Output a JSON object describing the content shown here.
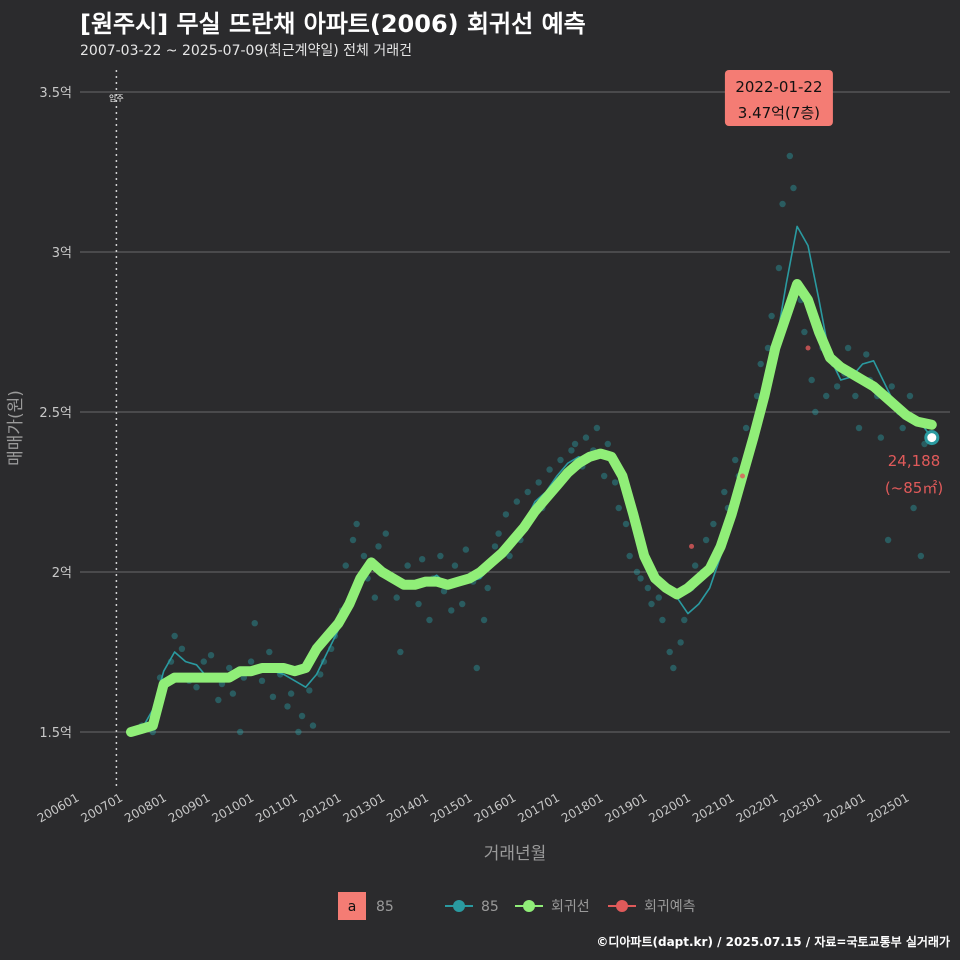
{
  "title": "[원주시] 무실 뜨란채 아파트(2006) 회귀선 예측",
  "subtitle": "2007-03-22 ~ 2025-07-09(최근계약일) 전체 거래건",
  "footer": "©디아파트(dapt.kr) / 2025.07.15 / 자료=국토교통부 실거래가",
  "colors": {
    "background": "#2b2b2d",
    "price_line": "#2a9aa0",
    "regression": "#90ee78",
    "prediction": "#e05a5a",
    "annotation_bg": "#f47c74"
  },
  "chart_data": {
    "type": "line",
    "xlabel": "거래년월",
    "ylabel": "매매가(원)",
    "x_range": [
      "2006-01",
      "2025-12"
    ],
    "ylim": [
      1.35,
      3.6
    ],
    "y_ticks": [
      {
        "value": 1.5,
        "label": "1.5억"
      },
      {
        "value": 2.0,
        "label": "2억"
      },
      {
        "value": 2.5,
        "label": "2.5억"
      },
      {
        "value": 3.0,
        "label": "3억"
      },
      {
        "value": 3.5,
        "label": "3.5억"
      }
    ],
    "x_ticks": [
      "200601",
      "200701",
      "200801",
      "200901",
      "201001",
      "201101",
      "201201",
      "201301",
      "201401",
      "201501",
      "201601",
      "201701",
      "201801",
      "201901",
      "202001",
      "202101",
      "202201",
      "202301",
      "202401",
      "202501"
    ],
    "grid": "horizontal",
    "move_in": {
      "x": "2006-11",
      "label": "입주"
    },
    "series": [
      {
        "name": "85",
        "style": "thin-line",
        "points": [
          [
            "2007-03",
            1.5
          ],
          [
            "2007-06",
            1.51
          ],
          [
            "2007-09",
            1.57
          ],
          [
            "2007-12",
            1.69
          ],
          [
            "2008-03",
            1.75
          ],
          [
            "2008-06",
            1.72
          ],
          [
            "2008-09",
            1.71
          ],
          [
            "2008-12",
            1.67
          ],
          [
            "2009-03",
            1.66
          ],
          [
            "2009-06",
            1.67
          ],
          [
            "2009-09",
            1.69
          ],
          [
            "2009-12",
            1.68
          ],
          [
            "2010-03",
            1.7
          ],
          [
            "2010-06",
            1.69
          ],
          [
            "2010-09",
            1.68
          ],
          [
            "2010-12",
            1.66
          ],
          [
            "2011-03",
            1.64
          ],
          [
            "2011-06",
            1.68
          ],
          [
            "2011-09",
            1.75
          ],
          [
            "2011-12",
            1.82
          ],
          [
            "2012-03",
            1.9
          ],
          [
            "2012-06",
            2.0
          ],
          [
            "2012-09",
            2.04
          ],
          [
            "2012-12",
            2.01
          ],
          [
            "2013-03",
            1.98
          ],
          [
            "2013-06",
            1.96
          ],
          [
            "2013-09",
            1.95
          ],
          [
            "2013-12",
            1.97
          ],
          [
            "2014-03",
            1.99
          ],
          [
            "2014-06",
            1.96
          ],
          [
            "2014-09",
            1.97
          ],
          [
            "2014-12",
            1.97
          ],
          [
            "2015-03",
            1.98
          ],
          [
            "2015-06",
            2.02
          ],
          [
            "2015-09",
            2.05
          ],
          [
            "2015-12",
            2.1
          ],
          [
            "2016-03",
            2.15
          ],
          [
            "2016-06",
            2.22
          ],
          [
            "2016-09",
            2.25
          ],
          [
            "2016-12",
            2.3
          ],
          [
            "2017-03",
            2.34
          ],
          [
            "2017-06",
            2.36
          ],
          [
            "2017-09",
            2.35
          ],
          [
            "2017-12",
            2.38
          ],
          [
            "2018-03",
            2.36
          ],
          [
            "2018-06",
            2.31
          ],
          [
            "2018-09",
            2.22
          ],
          [
            "2018-12",
            2.08
          ],
          [
            "2019-03",
            2.0
          ],
          [
            "2019-06",
            1.95
          ],
          [
            "2019-09",
            1.92
          ],
          [
            "2019-12",
            1.87
          ],
          [
            "2020-03",
            1.9
          ],
          [
            "2020-06",
            1.95
          ],
          [
            "2020-09",
            2.05
          ],
          [
            "2020-12",
            2.15
          ],
          [
            "2021-03",
            2.28
          ],
          [
            "2021-06",
            2.4
          ],
          [
            "2021-09",
            2.52
          ],
          [
            "2021-12",
            2.7
          ],
          [
            "2022-03",
            2.9
          ],
          [
            "2022-06",
            3.08
          ],
          [
            "2022-09",
            3.02
          ],
          [
            "2022-12",
            2.85
          ],
          [
            "2023-03",
            2.67
          ],
          [
            "2023-06",
            2.6
          ],
          [
            "2023-09",
            2.61
          ],
          [
            "2023-12",
            2.65
          ],
          [
            "2024-03",
            2.66
          ],
          [
            "2024-06",
            2.59
          ],
          [
            "2024-09",
            2.52
          ],
          [
            "2024-12",
            2.5
          ],
          [
            "2025-03",
            2.48
          ],
          [
            "2025-07",
            2.42
          ]
        ]
      },
      {
        "name": "회귀선",
        "style": "thick-line",
        "points": [
          [
            "2007-03",
            1.5
          ],
          [
            "2007-06",
            1.51
          ],
          [
            "2007-09",
            1.52
          ],
          [
            "2007-12",
            1.65
          ],
          [
            "2008-03",
            1.67
          ],
          [
            "2008-06",
            1.67
          ],
          [
            "2008-09",
            1.67
          ],
          [
            "2008-12",
            1.67
          ],
          [
            "2009-03",
            1.67
          ],
          [
            "2009-06",
            1.67
          ],
          [
            "2009-09",
            1.69
          ],
          [
            "2009-12",
            1.69
          ],
          [
            "2010-03",
            1.7
          ],
          [
            "2010-06",
            1.7
          ],
          [
            "2010-09",
            1.7
          ],
          [
            "2010-12",
            1.69
          ],
          [
            "2011-03",
            1.7
          ],
          [
            "2011-06",
            1.76
          ],
          [
            "2011-09",
            1.8
          ],
          [
            "2011-12",
            1.84
          ],
          [
            "2012-03",
            1.9
          ],
          [
            "2012-06",
            1.98
          ],
          [
            "2012-09",
            2.03
          ],
          [
            "2012-12",
            2.0
          ],
          [
            "2013-03",
            1.98
          ],
          [
            "2013-06",
            1.96
          ],
          [
            "2013-09",
            1.96
          ],
          [
            "2013-12",
            1.97
          ],
          [
            "2014-03",
            1.97
          ],
          [
            "2014-06",
            1.96
          ],
          [
            "2014-09",
            1.97
          ],
          [
            "2014-12",
            1.98
          ],
          [
            "2015-03",
            2.0
          ],
          [
            "2015-06",
            2.03
          ],
          [
            "2015-09",
            2.06
          ],
          [
            "2015-12",
            2.1
          ],
          [
            "2016-03",
            2.14
          ],
          [
            "2016-06",
            2.19
          ],
          [
            "2016-09",
            2.23
          ],
          [
            "2016-12",
            2.27
          ],
          [
            "2017-03",
            2.31
          ],
          [
            "2017-06",
            2.34
          ],
          [
            "2017-09",
            2.36
          ],
          [
            "2017-12",
            2.37
          ],
          [
            "2018-03",
            2.36
          ],
          [
            "2018-06",
            2.3
          ],
          [
            "2018-09",
            2.18
          ],
          [
            "2018-12",
            2.05
          ],
          [
            "2019-03",
            1.98
          ],
          [
            "2019-06",
            1.95
          ],
          [
            "2019-09",
            1.93
          ],
          [
            "2019-12",
            1.95
          ],
          [
            "2020-03",
            1.98
          ],
          [
            "2020-06",
            2.01
          ],
          [
            "2020-09",
            2.08
          ],
          [
            "2020-12",
            2.18
          ],
          [
            "2021-03",
            2.3
          ],
          [
            "2021-06",
            2.42
          ],
          [
            "2021-09",
            2.55
          ],
          [
            "2021-12",
            2.7
          ],
          [
            "2022-03",
            2.8
          ],
          [
            "2022-06",
            2.9
          ],
          [
            "2022-09",
            2.85
          ],
          [
            "2022-12",
            2.75
          ],
          [
            "2023-03",
            2.67
          ],
          [
            "2023-06",
            2.64
          ],
          [
            "2023-09",
            2.62
          ],
          [
            "2023-12",
            2.6
          ],
          [
            "2024-03",
            2.58
          ],
          [
            "2024-06",
            2.55
          ],
          [
            "2024-09",
            2.52
          ],
          [
            "2024-12",
            2.49
          ],
          [
            "2025-03",
            2.47
          ],
          [
            "2025-07",
            2.46
          ]
        ]
      },
      {
        "name": "회귀예측",
        "style": "marker",
        "points": [
          [
            "2020-01",
            2.08
          ],
          [
            "2021-03",
            2.3
          ],
          [
            "2022-09",
            2.7
          ]
        ]
      }
    ],
    "scatter": [
      [
        "2007-06",
        1.52
      ],
      [
        "2007-09",
        1.5
      ],
      [
        "2007-11",
        1.67
      ],
      [
        "2008-02",
        1.72
      ],
      [
        "2008-03",
        1.8
      ],
      [
        "2008-05",
        1.76
      ],
      [
        "2008-07",
        1.66
      ],
      [
        "2008-09",
        1.64
      ],
      [
        "2008-11",
        1.72
      ],
      [
        "2009-01",
        1.74
      ],
      [
        "2009-03",
        1.6
      ],
      [
        "2009-04",
        1.65
      ],
      [
        "2009-06",
        1.7
      ],
      [
        "2009-07",
        1.62
      ],
      [
        "2009-09",
        1.5
      ],
      [
        "2009-10",
        1.67
      ],
      [
        "2009-12",
        1.72
      ],
      [
        "2010-01",
        1.84
      ],
      [
        "2010-03",
        1.66
      ],
      [
        "2010-05",
        1.75
      ],
      [
        "2010-06",
        1.61
      ],
      [
        "2010-08",
        1.68
      ],
      [
        "2010-10",
        1.58
      ],
      [
        "2010-11",
        1.62
      ],
      [
        "2011-01",
        1.5
      ],
      [
        "2011-02",
        1.55
      ],
      [
        "2011-04",
        1.63
      ],
      [
        "2011-05",
        1.52
      ],
      [
        "2011-07",
        1.68
      ],
      [
        "2011-08",
        1.72
      ],
      [
        "2011-10",
        1.76
      ],
      [
        "2011-11",
        1.8
      ],
      [
        "2012-01",
        1.88
      ],
      [
        "2012-02",
        2.02
      ],
      [
        "2012-04",
        2.1
      ],
      [
        "2012-05",
        2.15
      ],
      [
        "2012-07",
        2.05
      ],
      [
        "2012-08",
        1.98
      ],
      [
        "2012-10",
        1.92
      ],
      [
        "2012-11",
        2.08
      ],
      [
        "2013-01",
        2.12
      ],
      [
        "2013-02",
        1.98
      ],
      [
        "2013-04",
        1.92
      ],
      [
        "2013-05",
        1.75
      ],
      [
        "2013-07",
        2.02
      ],
      [
        "2013-08",
        1.96
      ],
      [
        "2013-10",
        1.9
      ],
      [
        "2013-11",
        2.04
      ],
      [
        "2014-01",
        1.85
      ],
      [
        "2014-02",
        1.98
      ],
      [
        "2014-04",
        2.05
      ],
      [
        "2014-05",
        1.94
      ],
      [
        "2014-07",
        1.88
      ],
      [
        "2014-08",
        2.02
      ],
      [
        "2014-10",
        1.9
      ],
      [
        "2014-11",
        2.07
      ],
      [
        "2015-01",
        1.97
      ],
      [
        "2015-02",
        1.7
      ],
      [
        "2015-04",
        1.85
      ],
      [
        "2015-05",
        1.95
      ],
      [
        "2015-07",
        2.08
      ],
      [
        "2015-08",
        2.12
      ],
      [
        "2015-10",
        2.18
      ],
      [
        "2015-11",
        2.05
      ],
      [
        "2016-01",
        2.22
      ],
      [
        "2016-02",
        2.1
      ],
      [
        "2016-04",
        2.25
      ],
      [
        "2016-05",
        2.18
      ],
      [
        "2016-07",
        2.28
      ],
      [
        "2016-08",
        2.2
      ],
      [
        "2016-10",
        2.32
      ],
      [
        "2016-11",
        2.26
      ],
      [
        "2017-01",
        2.35
      ],
      [
        "2017-02",
        2.3
      ],
      [
        "2017-04",
        2.38
      ],
      [
        "2017-05",
        2.4
      ],
      [
        "2017-07",
        2.33
      ],
      [
        "2017-08",
        2.42
      ],
      [
        "2017-10",
        2.38
      ],
      [
        "2017-11",
        2.45
      ],
      [
        "2018-01",
        2.3
      ],
      [
        "2018-02",
        2.4
      ],
      [
        "2018-04",
        2.28
      ],
      [
        "2018-05",
        2.2
      ],
      [
        "2018-07",
        2.15
      ],
      [
        "2018-08",
        2.05
      ],
      [
        "2018-10",
        2.0
      ],
      [
        "2018-11",
        1.98
      ],
      [
        "2019-01",
        1.95
      ],
      [
        "2019-02",
        1.9
      ],
      [
        "2019-04",
        1.92
      ],
      [
        "2019-05",
        1.85
      ],
      [
        "2019-07",
        1.75
      ],
      [
        "2019-08",
        1.7
      ],
      [
        "2019-10",
        1.78
      ],
      [
        "2019-11",
        1.85
      ],
      [
        "2020-01",
        1.95
      ],
      [
        "2020-02",
        2.02
      ],
      [
        "2020-04",
        2.0
      ],
      [
        "2020-05",
        2.1
      ],
      [
        "2020-07",
        2.15
      ],
      [
        "2020-08",
        2.05
      ],
      [
        "2020-10",
        2.25
      ],
      [
        "2020-11",
        2.2
      ],
      [
        "2021-01",
        2.35
      ],
      [
        "2021-02",
        2.3
      ],
      [
        "2021-04",
        2.45
      ],
      [
        "2021-05",
        2.4
      ],
      [
        "2021-07",
        2.55
      ],
      [
        "2021-08",
        2.65
      ],
      [
        "2021-10",
        2.7
      ],
      [
        "2021-11",
        2.8
      ],
      [
        "2022-01",
        2.95
      ],
      [
        "2022-02",
        3.15
      ],
      [
        "2022-04",
        3.3
      ],
      [
        "2022-05",
        3.2
      ],
      [
        "2022-07",
        2.85
      ],
      [
        "2022-08",
        2.75
      ],
      [
        "2022-10",
        2.6
      ],
      [
        "2022-11",
        2.5
      ],
      [
        "2023-01",
        2.7
      ],
      [
        "2023-02",
        2.55
      ],
      [
        "2023-04",
        2.65
      ],
      [
        "2023-05",
        2.58
      ],
      [
        "2023-07",
        2.62
      ],
      [
        "2023-08",
        2.7
      ],
      [
        "2023-10",
        2.55
      ],
      [
        "2023-11",
        2.45
      ],
      [
        "2024-01",
        2.68
      ],
      [
        "2024-02",
        2.6
      ],
      [
        "2024-04",
        2.55
      ],
      [
        "2024-05",
        2.42
      ],
      [
        "2024-07",
        2.1
      ],
      [
        "2024-08",
        2.58
      ],
      [
        "2024-10",
        2.5
      ],
      [
        "2024-11",
        2.45
      ],
      [
        "2025-01",
        2.55
      ],
      [
        "2025-02",
        2.2
      ],
      [
        "2025-04",
        2.05
      ],
      [
        "2025-05",
        2.4
      ]
    ],
    "max_annotation": {
      "x": "2022-01",
      "y": 3.47,
      "date": "2022-01-22",
      "value_label": "3.47억(7층)"
    },
    "latest": {
      "x": "2025-07",
      "y": 2.42,
      "count_label": "24,188",
      "area_label": "(~85㎡)"
    },
    "legend": {
      "placement": "bottom",
      "area_key": "a",
      "area_label": "85",
      "items": [
        "85",
        "회귀선",
        "회귀예측"
      ]
    }
  }
}
